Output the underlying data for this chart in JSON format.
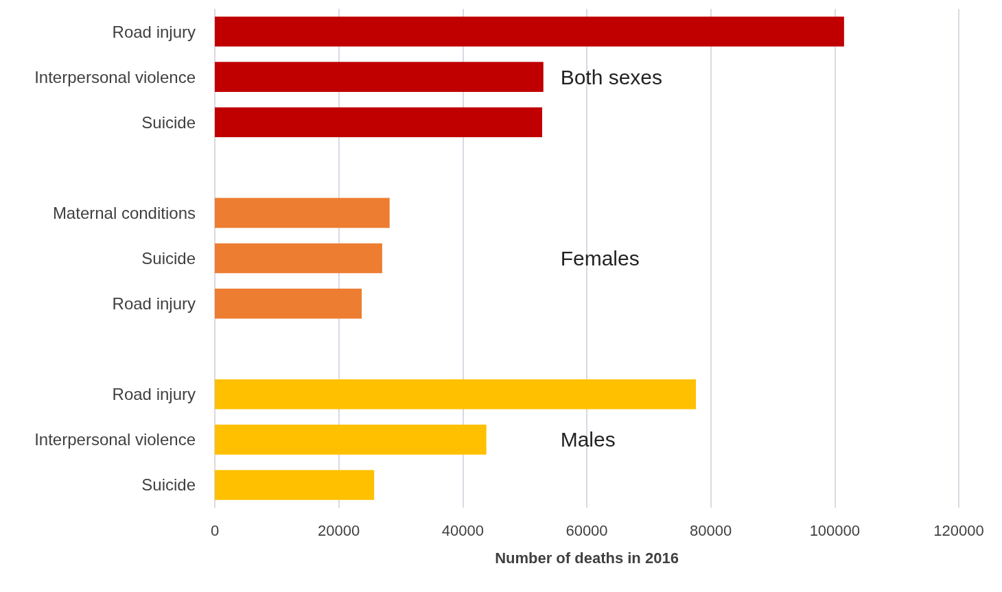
{
  "chart_data": {
    "type": "bar",
    "orientation": "horizontal",
    "stacked": true,
    "xlabel": "Number of deaths in 2016",
    "categories": [
      "Road injury",
      "Interpersonal violence",
      "Suicide",
      null,
      "Maternal conditions",
      "Suicide",
      "Road injury",
      null,
      "Road injury",
      "Interpersonal violence",
      "Suicide"
    ],
    "series": [
      {
        "name": "Both sexes",
        "color": "#c00000",
        "values": [
          101500,
          53000,
          52800,
          null,
          null,
          null,
          null,
          null,
          null,
          null,
          null
        ]
      },
      {
        "name": "Females",
        "color": "#ed7d31",
        "values": [
          null,
          null,
          null,
          null,
          28200,
          27000,
          23700,
          null,
          null,
          null,
          null
        ]
      },
      {
        "name": "Males",
        "color": "#ffc000",
        "values": [
          null,
          null,
          null,
          null,
          null,
          null,
          null,
          null,
          77600,
          43800,
          25700
        ]
      }
    ],
    "xlim": [
      0,
      120000
    ],
    "xticks": [
      0,
      20000,
      40000,
      60000,
      80000,
      100000,
      120000
    ],
    "grid": "x",
    "legend": false
  }
}
